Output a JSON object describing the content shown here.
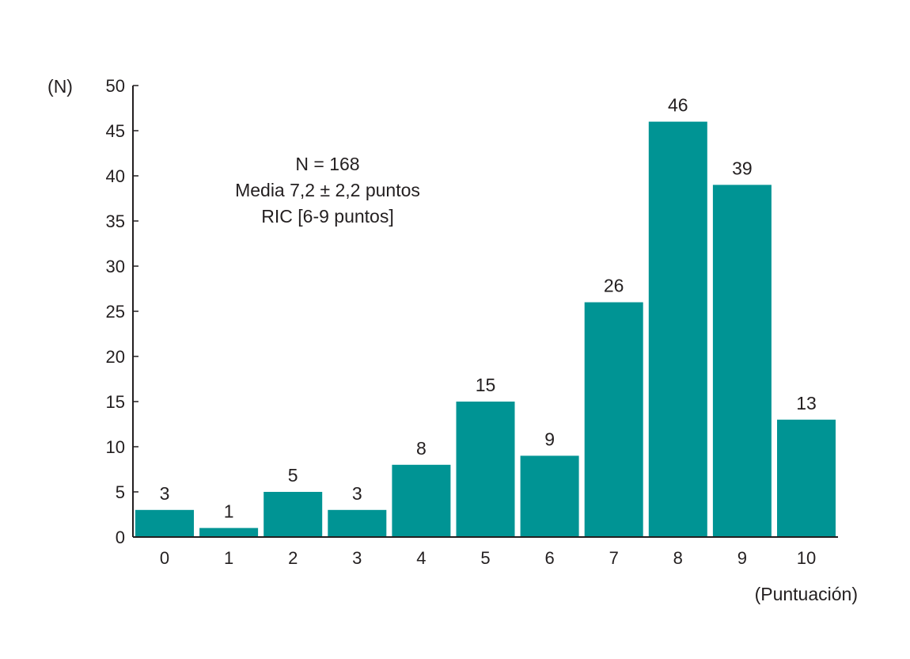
{
  "chart_data": {
    "type": "bar",
    "categories": [
      "0",
      "1",
      "2",
      "3",
      "4",
      "5",
      "6",
      "7",
      "8",
      "9",
      "10"
    ],
    "values": [
      3,
      1,
      5,
      3,
      8,
      15,
      9,
      26,
      46,
      39,
      13
    ],
    "xlabel": "(Puntuación)",
    "ylabel": "(N)",
    "ylim": [
      0,
      50
    ],
    "yticks": [
      0,
      5,
      10,
      15,
      20,
      25,
      30,
      35,
      40,
      45,
      50
    ],
    "grid": false,
    "legend": "none",
    "bar_color": "#009494",
    "annotation": [
      "N = 168",
      "Media 7,2 ±  2,2 puntos",
      "RIC [6-9 puntos]"
    ]
  }
}
